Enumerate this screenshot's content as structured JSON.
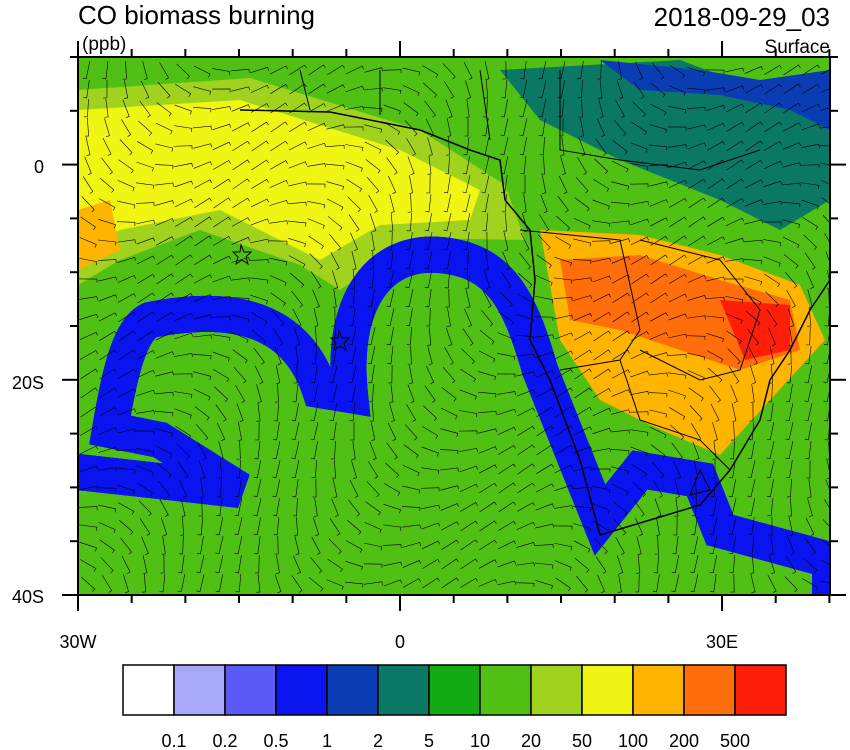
{
  "header": {
    "title": "CO biomass burning",
    "units": "(ppb)",
    "time": "2018-09-29_03",
    "level": "Surface"
  },
  "map": {
    "lat_labels": [
      "0",
      "20S",
      "40S"
    ],
    "lon_labels": [
      "30W",
      "0",
      "30E"
    ]
  },
  "colorbar": {
    "colors": [
      "#ffffff",
      "#a8a8f8",
      "#5a5af8",
      "#0a14f0",
      "#0a3cb4",
      "#0a7864",
      "#14aa14",
      "#50c014",
      "#a0d21e",
      "#f0f514",
      "#ffb400",
      "#ff6e0a",
      "#ff1e0a"
    ],
    "labels": [
      "0.1",
      "0.2",
      "0.5",
      "1",
      "2",
      "5",
      "10",
      "20",
      "50",
      "100",
      "200",
      "500"
    ]
  }
}
